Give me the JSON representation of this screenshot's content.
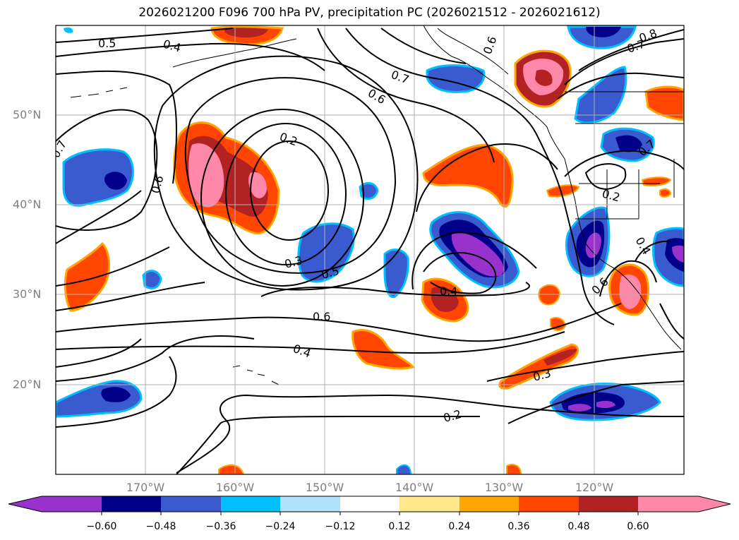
{
  "title": "2026021200 F096 700 hPa PV, precipitation PC (2026021512 - 2026021612)",
  "latitude_labels": [
    "50°N",
    "40°N",
    "30°N",
    "20°N"
  ],
  "longitude_labels": [
    "170°W",
    "160°W",
    "150°W",
    "140°W",
    "130°W",
    "120°W"
  ],
  "contour_labels": [
    "0.5",
    "0.4",
    "0.7",
    "0.6",
    "0.2",
    "0.3",
    "0.5",
    "0.6",
    "0.4",
    "0.4",
    "0.3",
    "0.2",
    "0.7",
    "0.6",
    "0.8",
    "0.7",
    "0.6",
    "0.2",
    "0.4",
    "0.7",
    "0.6"
  ],
  "colorbar": {
    "ticks": [
      "−0.60",
      "−0.48",
      "−0.36",
      "−0.24",
      "−0.12",
      "0.12",
      "0.24",
      "0.36",
      "0.48",
      "0.60"
    ],
    "colors": [
      "#9932CC",
      "#00008B",
      "#3A5BD0",
      "#00BFFF",
      "#ADE2FA",
      "#FFFFFF",
      "#FFE78C",
      "#FFA500",
      "#FF4500",
      "#B22222",
      "#FF88AA"
    ]
  }
}
